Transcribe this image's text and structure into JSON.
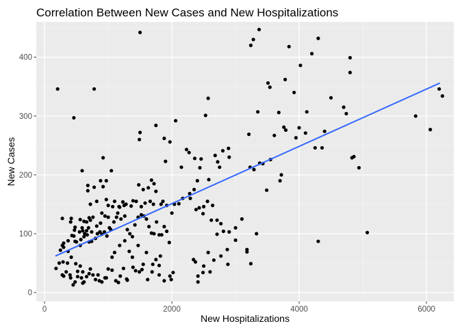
{
  "chart_data": {
    "type": "scatter",
    "title": "Correlation Between New Cases and New Hospitalizations",
    "xlabel": "New Hospitalizations",
    "ylabel": "New Cases",
    "xlim": [
      -130,
      6430
    ],
    "ylim": [
      -15,
      460
    ],
    "x_ticks": [
      0,
      2000,
      4000,
      6000
    ],
    "x_tick_labels": [
      "0",
      "2000",
      "4000",
      "6000"
    ],
    "y_ticks": [
      0,
      100,
      200,
      300,
      400
    ],
    "y_tick_labels": [
      "0",
      "100",
      "200",
      "300",
      "400"
    ],
    "grid": true,
    "legend": "none",
    "colors": {
      "panel": "#ebebeb",
      "grid_major": "#ffffff",
      "grid_minor": "#f5f5f5",
      "points": "#000000",
      "trend": "#3366ff"
    },
    "trend_line": {
      "x": [
        170,
        6210
      ],
      "y": [
        62,
        356
      ]
    },
    "points": [
      [
        205,
        346
      ],
      [
        780,
        346
      ],
      [
        1500,
        442
      ],
      [
        3280,
        430
      ],
      [
        3370,
        447
      ],
      [
        3240,
        420
      ],
      [
        4300,
        432
      ],
      [
        3840,
        418
      ],
      [
        4200,
        406
      ],
      [
        4800,
        399
      ],
      [
        4020,
        386
      ],
      [
        4800,
        374
      ],
      [
        3510,
        356
      ],
      [
        3540,
        349
      ],
      [
        3780,
        362
      ],
      [
        3920,
        340
      ],
      [
        4500,
        331
      ],
      [
        2570,
        330
      ],
      [
        4700,
        315
      ],
      [
        4120,
        307
      ],
      [
        4740,
        304
      ],
      [
        3350,
        307
      ],
      [
        4400,
        274
      ],
      [
        5830,
        300
      ],
      [
        6060,
        277
      ],
      [
        6200,
        346
      ],
      [
        6250,
        334
      ],
      [
        460,
        297
      ],
      [
        2060,
        292
      ],
      [
        1750,
        284
      ],
      [
        1500,
        272
      ],
      [
        1490,
        260
      ],
      [
        1880,
        262
      ],
      [
        1970,
        256
      ],
      [
        2530,
        301
      ],
      [
        3760,
        281
      ],
      [
        3790,
        276
      ],
      [
        4000,
        280
      ],
      [
        3680,
        306
      ],
      [
        4100,
        271
      ],
      [
        3210,
        269
      ],
      [
        3950,
        263
      ],
      [
        4250,
        246
      ],
      [
        4360,
        246
      ],
      [
        4830,
        229
      ],
      [
        4860,
        231
      ],
      [
        4940,
        212
      ],
      [
        3610,
        267
      ],
      [
        3720,
        200
      ],
      [
        3550,
        226
      ],
      [
        3430,
        219
      ],
      [
        3380,
        220
      ],
      [
        3230,
        213
      ],
      [
        3290,
        209
      ],
      [
        3700,
        190
      ],
      [
        3490,
        174
      ],
      [
        3100,
        125
      ],
      [
        3180,
        69
      ],
      [
        3180,
        73
      ],
      [
        3330,
        100
      ],
      [
        4300,
        87
      ],
      [
        5070,
        102
      ],
      [
        2890,
        245
      ],
      [
        2800,
        241
      ],
      [
        2720,
        222
      ],
      [
        2680,
        233
      ],
      [
        2900,
        230
      ],
      [
        2750,
        213
      ],
      [
        2580,
        192
      ],
      [
        2460,
        227
      ],
      [
        2440,
        212
      ],
      [
        2270,
        238
      ],
      [
        2360,
        228
      ],
      [
        2230,
        243
      ],
      [
        2150,
        213
      ],
      [
        1900,
        223
      ],
      [
        1750,
        172
      ],
      [
        1680,
        191
      ],
      [
        1720,
        185
      ],
      [
        1630,
        178
      ],
      [
        1550,
        175
      ],
      [
        1480,
        183
      ],
      [
        1390,
        156
      ],
      [
        1280,
        150
      ],
      [
        1230,
        154
      ],
      [
        1170,
        146
      ],
      [
        1070,
        146
      ],
      [
        1050,
        207
      ],
      [
        920,
        229
      ],
      [
        920,
        180
      ],
      [
        970,
        190
      ],
      [
        880,
        190
      ],
      [
        780,
        179
      ],
      [
        680,
        182
      ],
      [
        680,
        173
      ],
      [
        590,
        207
      ],
      [
        820,
        155
      ],
      [
        720,
        150
      ],
      [
        970,
        158
      ],
      [
        1000,
        148
      ],
      [
        1100,
        155
      ],
      [
        1180,
        145
      ],
      [
        1250,
        148
      ],
      [
        1360,
        147
      ],
      [
        1440,
        155
      ],
      [
        1520,
        146
      ],
      [
        1580,
        152
      ],
      [
        1660,
        155
      ],
      [
        1710,
        150
      ],
      [
        1830,
        150
      ],
      [
        1860,
        155
      ],
      [
        1920,
        148
      ],
      [
        2040,
        150
      ],
      [
        2110,
        151
      ],
      [
        2000,
        135
      ],
      [
        2280,
        168
      ],
      [
        2350,
        175
      ],
      [
        2400,
        190
      ],
      [
        2290,
        160
      ],
      [
        2170,
        160
      ],
      [
        2430,
        144
      ],
      [
        2500,
        146
      ],
      [
        2380,
        141
      ],
      [
        2490,
        134
      ],
      [
        2560,
        155
      ],
      [
        2640,
        148
      ],
      [
        2620,
        123
      ],
      [
        2710,
        123
      ],
      [
        2770,
        117
      ],
      [
        2810,
        104
      ],
      [
        2710,
        99
      ],
      [
        2900,
        103
      ],
      [
        3000,
        110
      ],
      [
        3240,
        49
      ],
      [
        3000,
        89
      ],
      [
        2870,
        73
      ],
      [
        2660,
        55
      ],
      [
        2770,
        62
      ],
      [
        2880,
        48
      ],
      [
        2340,
        56
      ],
      [
        2370,
        52
      ],
      [
        2500,
        45
      ],
      [
        2570,
        68
      ],
      [
        2600,
        35
      ],
      [
        2410,
        28
      ],
      [
        2490,
        34
      ],
      [
        2410,
        18
      ],
      [
        2020,
        34
      ],
      [
        1970,
        28
      ],
      [
        1990,
        22
      ],
      [
        1800,
        46
      ],
      [
        1700,
        48
      ],
      [
        1750,
        56
      ],
      [
        1820,
        62
      ],
      [
        1690,
        35
      ],
      [
        1800,
        30
      ],
      [
        1880,
        20
      ],
      [
        1620,
        22
      ],
      [
        1530,
        39
      ],
      [
        1490,
        35
      ],
      [
        1550,
        48
      ],
      [
        1430,
        37
      ],
      [
        1380,
        60
      ],
      [
        1390,
        43
      ],
      [
        1290,
        23
      ],
      [
        1300,
        21
      ],
      [
        1240,
        41
      ],
      [
        1190,
        28
      ],
      [
        1160,
        17
      ],
      [
        1120,
        20
      ],
      [
        1060,
        38
      ],
      [
        1000,
        40
      ],
      [
        970,
        25
      ],
      [
        950,
        25
      ],
      [
        900,
        18
      ],
      [
        860,
        20
      ],
      [
        840,
        30
      ],
      [
        800,
        22
      ],
      [
        760,
        30
      ],
      [
        720,
        40
      ],
      [
        700,
        32
      ],
      [
        660,
        27
      ],
      [
        620,
        18
      ],
      [
        600,
        16
      ],
      [
        580,
        25
      ],
      [
        560,
        45
      ],
      [
        520,
        36
      ],
      [
        480,
        18
      ],
      [
        450,
        13
      ],
      [
        400,
        30
      ],
      [
        360,
        50
      ],
      [
        290,
        52
      ],
      [
        230,
        50
      ],
      [
        180,
        41
      ],
      [
        340,
        35
      ],
      [
        420,
        60
      ],
      [
        490,
        49
      ],
      [
        280,
        30
      ],
      [
        300,
        28
      ],
      [
        410,
        25
      ],
      [
        520,
        27
      ],
      [
        600,
        35
      ],
      [
        250,
        72
      ],
      [
        300,
        84
      ],
      [
        280,
        80
      ],
      [
        370,
        70
      ],
      [
        430,
        97
      ],
      [
        470,
        106
      ],
      [
        500,
        86
      ],
      [
        560,
        80
      ],
      [
        570,
        90
      ],
      [
        620,
        95
      ],
      [
        670,
        98
      ],
      [
        700,
        86
      ],
      [
        740,
        87
      ],
      [
        800,
        92
      ],
      [
        830,
        100
      ],
      [
        870,
        103
      ],
      [
        900,
        99
      ],
      [
        940,
        103
      ],
      [
        980,
        96
      ],
      [
        1020,
        110
      ],
      [
        1040,
        107
      ],
      [
        1090,
        120
      ],
      [
        1130,
        128
      ],
      [
        1150,
        135
      ],
      [
        1200,
        125
      ],
      [
        1260,
        130
      ],
      [
        1300,
        107
      ],
      [
        1340,
        100
      ],
      [
        1380,
        95
      ],
      [
        1420,
        115
      ],
      [
        1470,
        128
      ],
      [
        1520,
        132
      ],
      [
        1560,
        130
      ],
      [
        1600,
        125
      ],
      [
        1640,
        112
      ],
      [
        1680,
        101
      ],
      [
        1720,
        100
      ],
      [
        1760,
        120
      ],
      [
        1800,
        98
      ],
      [
        1840,
        98
      ],
      [
        1880,
        112
      ],
      [
        1920,
        104
      ],
      [
        1960,
        85
      ],
      [
        1100,
        68
      ],
      [
        1060,
        60
      ],
      [
        1180,
        80
      ],
      [
        1260,
        88
      ],
      [
        1330,
        70
      ],
      [
        1470,
        80
      ],
      [
        1600,
        68
      ],
      [
        630,
        100
      ],
      [
        700,
        127
      ],
      [
        720,
        123
      ],
      [
        660,
        120
      ],
      [
        620,
        121
      ],
      [
        590,
        110
      ],
      [
        560,
        124
      ],
      [
        420,
        126
      ],
      [
        410,
        120
      ],
      [
        280,
        126
      ],
      [
        900,
        135
      ],
      [
        950,
        130
      ],
      [
        1000,
        128
      ],
      [
        880,
        118
      ],
      [
        820,
        113
      ],
      [
        760,
        128
      ],
      [
        740,
        103
      ],
      [
        690,
        110
      ],
      [
        660,
        105
      ],
      [
        600,
        105
      ],
      [
        550,
        103
      ],
      [
        480,
        111
      ],
      [
        460,
        96
      ],
      [
        480,
        87
      ],
      [
        370,
        88
      ],
      [
        300,
        77
      ]
    ]
  }
}
